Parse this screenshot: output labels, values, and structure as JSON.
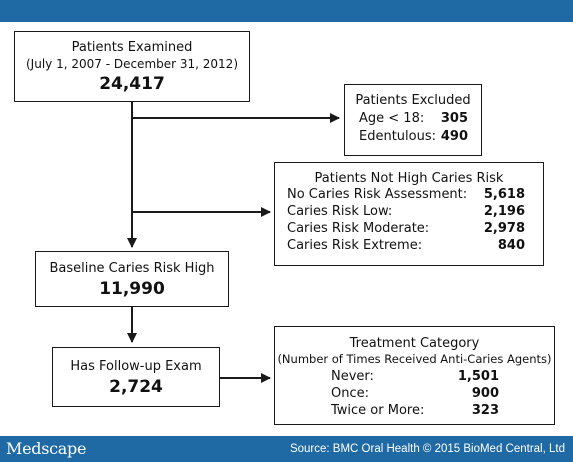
{
  "header": {},
  "boxes": {
    "examined": {
      "title": "Patients Examined",
      "subtitle": "(July 1, 2007 - December 31, 2012)",
      "value": "24,417"
    },
    "excluded": {
      "title": "Patients Excluded",
      "rows": [
        {
          "label": "Age < 18:",
          "value": "305"
        },
        {
          "label": "Edentulous:",
          "value": "490"
        }
      ]
    },
    "not_high": {
      "title": "Patients Not High Caries Risk",
      "rows": [
        {
          "label": "No Caries Risk Assessment:",
          "value": "5,618"
        },
        {
          "label": "Caries Risk Low:",
          "value": "2,196"
        },
        {
          "label": "Caries Risk Moderate:",
          "value": "2,978"
        },
        {
          "label": "Caries Risk Extreme:",
          "value": "840"
        }
      ]
    },
    "baseline": {
      "title": "Baseline Caries Risk High",
      "value": "11,990"
    },
    "followup": {
      "title": "Has Follow-up Exam",
      "value": "2,724"
    },
    "treatment": {
      "title": "Treatment Category",
      "subtitle": "(Number of Times Received Anti-Caries Agents)",
      "rows": [
        {
          "label": "Never:",
          "value": "1,501"
        },
        {
          "label": "Once:",
          "value": "900"
        },
        {
          "label": "Twice or More:",
          "value": "323"
        }
      ]
    }
  },
  "footer": {
    "logo": "Medscape",
    "source": "Source: BMC Oral Health © 2015 BioMed Central, Ltd"
  },
  "colors": {
    "bar": "#1f6aa5",
    "border": "#1a1a1a"
  }
}
